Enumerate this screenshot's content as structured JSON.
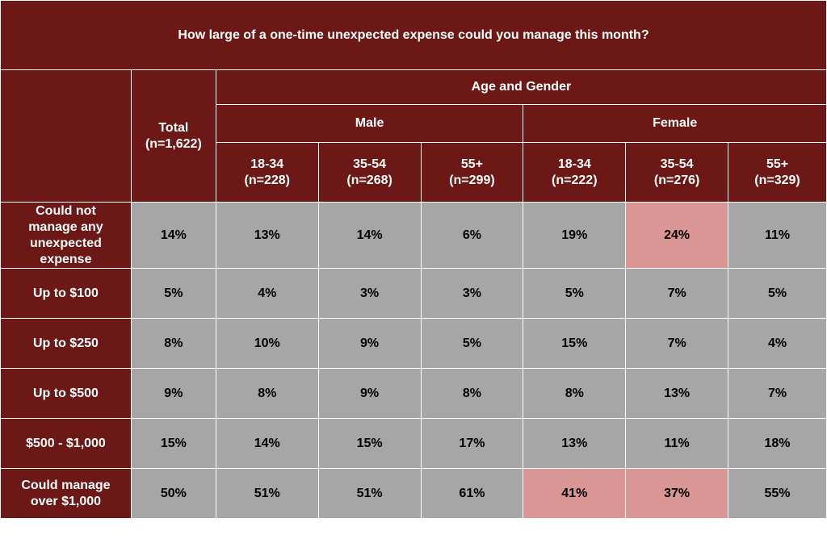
{
  "chart_data": {
    "type": "table",
    "title": "How large of a one-time unexpected expense could you manage this month?",
    "banner_label": "Age and Gender",
    "total_header": {
      "label": "Total",
      "n": "(n=1,622)"
    },
    "groups": [
      {
        "name": "Male",
        "columns": [
          {
            "label": "18-34",
            "n": "(n=228)"
          },
          {
            "label": "35-54",
            "n": "(n=268)"
          },
          {
            "label": "55+",
            "n": "(n=299)"
          }
        ]
      },
      {
        "name": "Female",
        "columns": [
          {
            "label": "18-34",
            "n": "(n=222)"
          },
          {
            "label": "35-54",
            "n": "(n=276)"
          },
          {
            "label": "55+",
            "n": "(n=329)"
          }
        ]
      }
    ],
    "rows": [
      {
        "label": "Could not manage any unexpected expense",
        "values": [
          "14%",
          "13%",
          "14%",
          "6%",
          "19%",
          "24%",
          "11%"
        ],
        "highlight": [
          5
        ]
      },
      {
        "label": "Up to $100",
        "values": [
          "5%",
          "4%",
          "3%",
          "3%",
          "5%",
          "7%",
          "5%"
        ],
        "highlight": []
      },
      {
        "label": "Up to $250",
        "values": [
          "8%",
          "10%",
          "9%",
          "5%",
          "15%",
          "7%",
          "4%"
        ],
        "highlight": []
      },
      {
        "label": "Up to $500",
        "values": [
          "9%",
          "8%",
          "9%",
          "8%",
          "8%",
          "13%",
          "7%"
        ],
        "highlight": []
      },
      {
        "label": "$500 - $1,000",
        "values": [
          "15%",
          "14%",
          "15%",
          "17%",
          "13%",
          "11%",
          "18%"
        ],
        "highlight": []
      },
      {
        "label": "Could manage over $1,000",
        "values": [
          "50%",
          "51%",
          "51%",
          "61%",
          "41%",
          "37%",
          "55%"
        ],
        "highlight": [
          4,
          5
        ]
      }
    ],
    "colors": {
      "header": "#6b1816",
      "cell": "#a6a6a6",
      "highlight": "#da9694",
      "border": "#ffffff"
    }
  }
}
